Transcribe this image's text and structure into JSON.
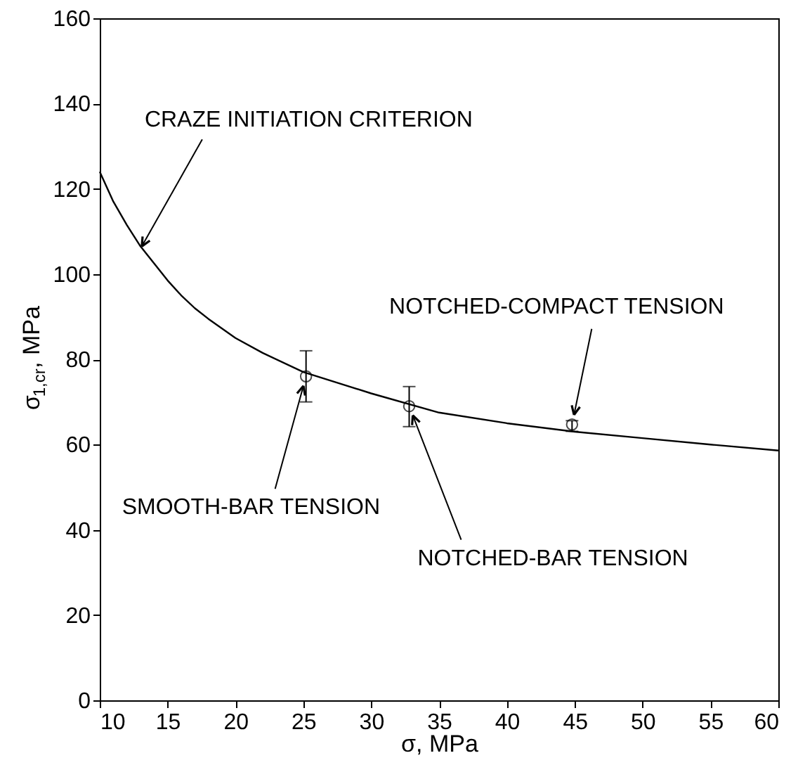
{
  "chart_data": {
    "type": "line",
    "xlabel": "σ, MPa",
    "ylabel": "σ$_{1,cr}$, MPa",
    "xlim": [
      10,
      60
    ],
    "xticks": [
      10,
      15,
      20,
      25,
      30,
      35,
      40,
      45,
      50,
      55,
      60
    ],
    "ylim": [
      0,
      160
    ],
    "yticks": [
      0,
      20,
      40,
      60,
      80,
      100,
      120,
      140,
      160
    ],
    "series": [
      {
        "color": "#000000",
        "marker": "none",
        "line_style": "solid",
        "x": [
          10,
          11,
          12,
          13,
          14,
          15,
          16,
          17,
          18,
          20,
          22,
          25,
          28,
          30,
          35,
          40,
          45,
          50,
          55,
          60
        ],
        "values": [
          124,
          117,
          111.5,
          106.5,
          102.5,
          98.5,
          95,
          92,
          89.5,
          85,
          81.5,
          77,
          74,
          72,
          67.5,
          65,
          63,
          61.5,
          60,
          58.6
        ]
      },
      {
        "type": "scatter",
        "color": "#000000",
        "marker": "circle",
        "x": [
          25.2,
          32.8,
          44.8
        ],
        "values": [
          76,
          69,
          64.7
        ],
        "errors": [
          [
            70,
            82
          ],
          [
            64.2,
            73.6
          ],
          [
            63.1,
            65.6
          ]
        ]
      }
    ],
    "annotations": [
      {
        "text": "CRAZE INITIATION CRITERION",
        "x": 13.1,
        "y": 106.5
      },
      {
        "text": "NOTCHED-COMPACT TENSION",
        "x": 44.8,
        "y": 64.7
      },
      {
        "text": "SMOOTH-BAR TENSION",
        "x": 25.2,
        "y": 76
      },
      {
        "text": "NOTCHED-BAR TENSION",
        "x": 32.8,
        "y": 69
      }
    ]
  }
}
